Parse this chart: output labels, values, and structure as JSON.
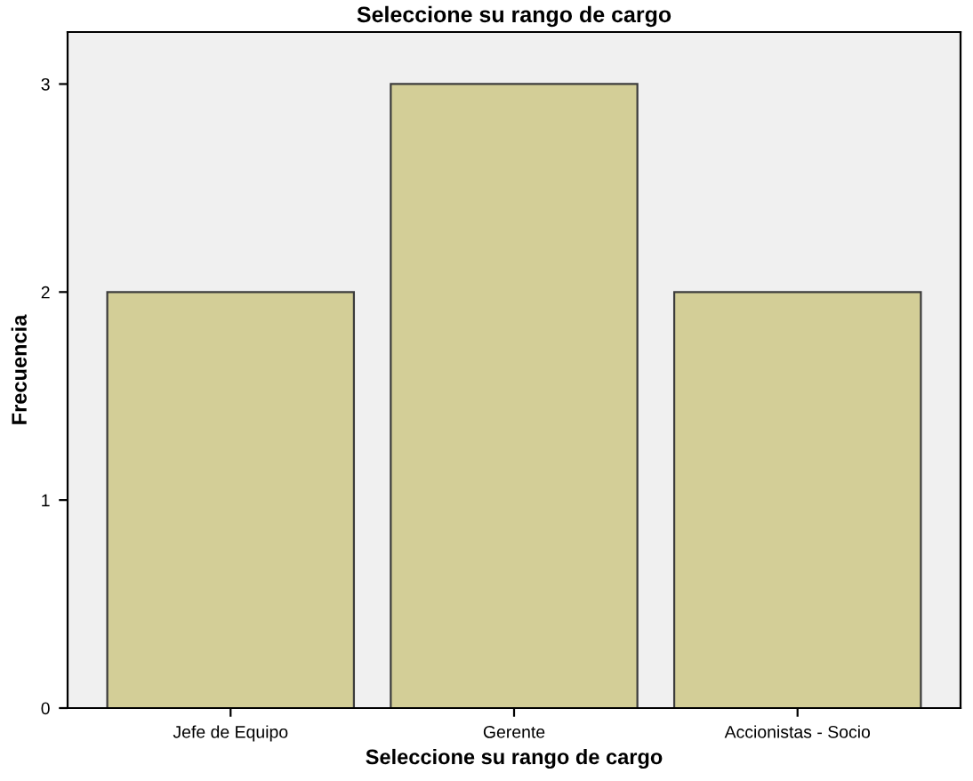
{
  "chart_data": {
    "type": "bar",
    "title": "Seleccione su rango de cargo",
    "xlabel": "Seleccione su rango de cargo",
    "ylabel": "Frecuencia",
    "categories": [
      "Jefe de Equipo",
      "Gerente",
      "Accionistas - Socio"
    ],
    "values": [
      2,
      3,
      2
    ],
    "color": "#d3ce97",
    "ylim": [
      0,
      3.25
    ],
    "yticks": [
      0,
      1,
      2,
      3
    ],
    "grid": false,
    "legend": false
  }
}
